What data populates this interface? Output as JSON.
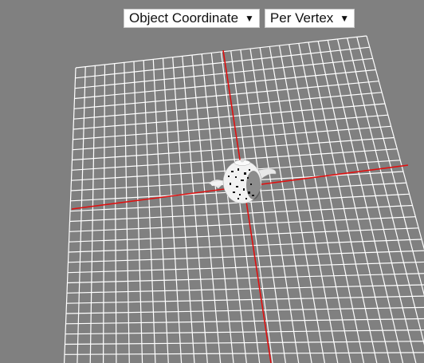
{
  "controls": {
    "coordinate_mode": {
      "selected": "Object Coordinate",
      "caret": "▼"
    },
    "shading_mode": {
      "selected": "Per Vertex",
      "caret": "▼"
    }
  },
  "scene": {
    "background_color": "#808080",
    "grid_color": "#ffffff",
    "axis_color": "#e01010",
    "object_icon": "teapot-icon"
  }
}
